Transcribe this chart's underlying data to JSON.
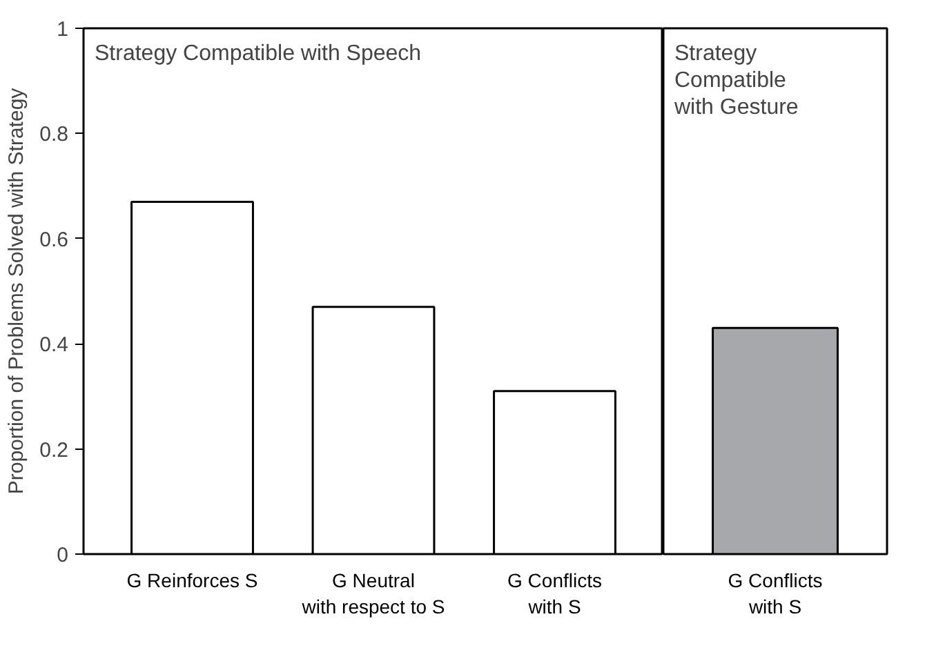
{
  "chart_data": [
    {
      "type": "bar",
      "title": "Strategy Compatible with Speech",
      "ylabel": "Proportion of Problems Solved with Strategy",
      "categories": [
        "G Reinforces S",
        "G Neutral\nwith respect to S",
        "G Conflicts\nwith S"
      ],
      "values": [
        0.67,
        0.47,
        0.31
      ],
      "color": "#ffffff",
      "ylim": [
        0,
        1
      ],
      "yticks": [
        0,
        0.2,
        0.4,
        0.6,
        0.8,
        1
      ],
      "grid": false
    },
    {
      "type": "bar",
      "title": "Strategy\nCompatible\nwith Gesture",
      "categories": [
        "G Conflicts\nwith S"
      ],
      "values": [
        0.43
      ],
      "color": "#a7a8ab",
      "ylim": [
        0,
        1
      ],
      "yticks": [
        0,
        0.2,
        0.4,
        0.6,
        0.8,
        1
      ],
      "grid": false,
      "tick_labels": "x"
    }
  ]
}
